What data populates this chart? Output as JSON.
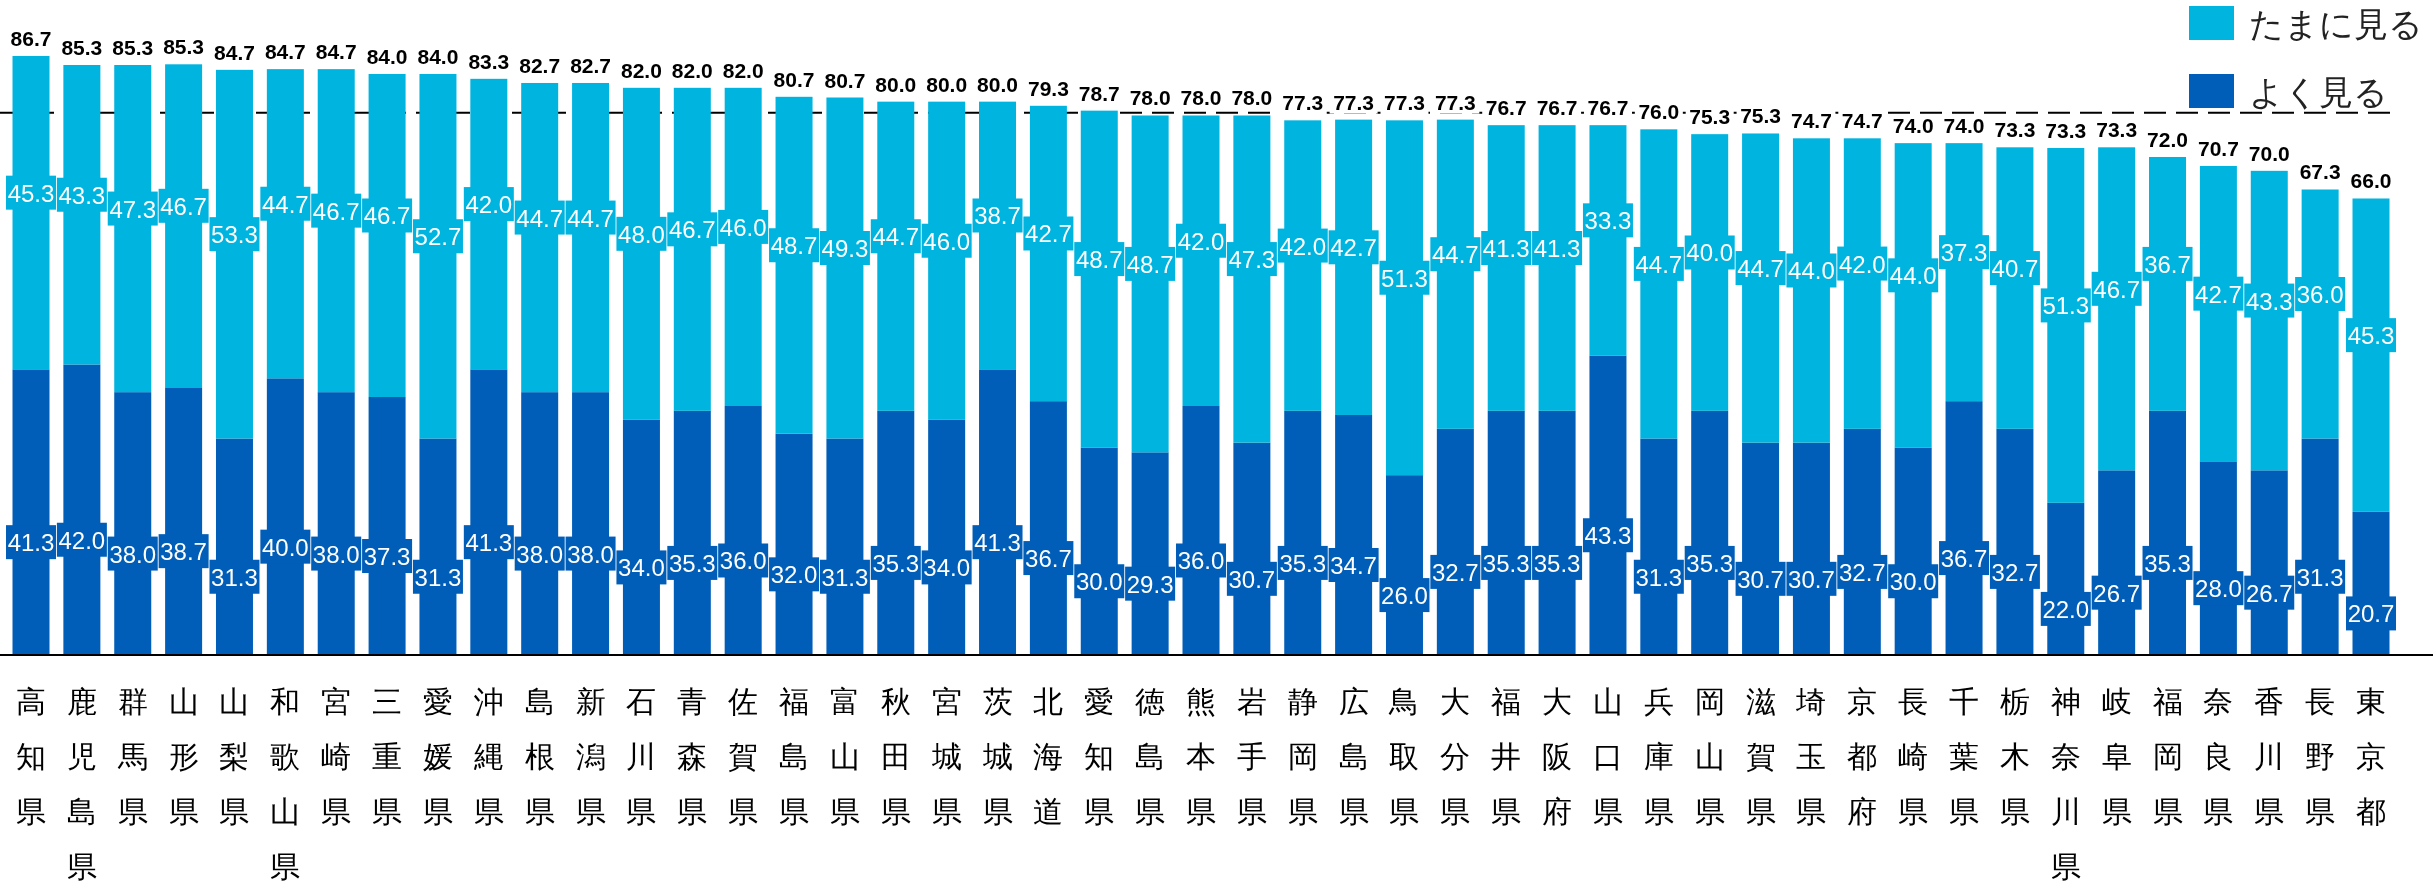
{
  "chart_data": {
    "type": "bar",
    "stacked": true,
    "legend": "top right",
    "categories": [
      "高知県",
      "鹿児島県",
      "群馬県",
      "山形県",
      "山梨県",
      "和歌山県",
      "宮崎県",
      "三重県",
      "愛媛県",
      "沖縄県",
      "島根県",
      "新潟県",
      "石川県",
      "青森県",
      "佐賀県",
      "福島県",
      "富山県",
      "秋田県",
      "宮城県",
      "茨城県",
      "北海道",
      "愛知県",
      "徳島県",
      "熊本県",
      "岩手県",
      "静岡県",
      "広島県",
      "鳥取県",
      "大分県",
      "福井県",
      "大阪府",
      "山口県",
      "兵庫県",
      "岡山県",
      "滋賀県",
      "埼玉県",
      "京都府",
      "長崎県",
      "千葉県",
      "栃木県",
      "神奈川県",
      "岐阜県",
      "福岡県",
      "奈良県",
      "香川県",
      "長野県",
      "東京都"
    ],
    "series": [
      {
        "name": "よく見る",
        "color": "#005eb8",
        "values": [
          41.3,
          42.0,
          38.0,
          38.7,
          31.3,
          40.0,
          38.0,
          37.3,
          31.3,
          41.3,
          38.0,
          38.0,
          34.0,
          35.3,
          36.0,
          32.0,
          31.3,
          35.3,
          34.0,
          41.3,
          36.7,
          30.0,
          29.3,
          36.0,
          30.7,
          35.3,
          34.7,
          26.0,
          32.7,
          35.3,
          35.3,
          43.3,
          31.3,
          35.3,
          30.7,
          30.7,
          32.7,
          30.0,
          36.7,
          32.7,
          22.0,
          26.7,
          35.3,
          28.0,
          26.7,
          31.3,
          20.7
        ],
        "value_labels": [
          "41.3",
          "42.0",
          "38.0",
          "38.7",
          "31.3",
          "40.0",
          "38.0",
          "37.3",
          "31.3",
          "41.3",
          "38.0",
          "38.0",
          "34.0",
          "35.3",
          "36.0",
          "32.0",
          "31.3",
          "35.3",
          "34.0",
          "41.3",
          "36.7",
          "30.0",
          "29.3",
          "36.0",
          "30.7",
          "35.3",
          "34.7",
          "26.0",
          "32.7",
          "35.3",
          "35.3",
          "43.3",
          "31.3",
          "35.3",
          "30.7",
          "30.7",
          "32.7",
          "30.0",
          "36.7",
          "32.7",
          "22.0",
          "26.7",
          "35.3",
          "28.0",
          "26.7",
          "31.3",
          "20.7"
        ]
      },
      {
        "name": "たまに見る",
        "color": "#00b4e0",
        "values": [
          45.3,
          43.3,
          47.3,
          46.7,
          53.3,
          44.7,
          46.7,
          46.7,
          52.7,
          42.0,
          44.7,
          44.7,
          48.0,
          46.7,
          46.0,
          48.7,
          49.3,
          44.7,
          46.0,
          38.7,
          42.7,
          48.7,
          48.7,
          42.0,
          47.3,
          42.0,
          42.7,
          51.3,
          44.7,
          41.3,
          41.3,
          33.3,
          44.7,
          40.0,
          44.7,
          44.0,
          42.0,
          44.0,
          37.3,
          40.7,
          51.3,
          46.7,
          36.7,
          42.7,
          43.3,
          36.0,
          45.3
        ],
        "value_labels": [
          "45.3",
          "43.3",
          "47.3",
          "46.7",
          "53.3",
          "44.7",
          "46.7",
          "46.7",
          "52.7",
          "42.0",
          "44.7",
          "44.7",
          "48.0",
          "46.7",
          "46.0",
          "48.7",
          "49.3",
          "44.7",
          "46.0",
          "38.7",
          "42.7",
          "48.7",
          "48.7",
          "42.0",
          "47.3",
          "42.0",
          "42.7",
          "51.3",
          "44.7",
          "41.3",
          "41.3",
          "33.3",
          "44.7",
          "40.0",
          "44.7",
          "44.0",
          "42.0",
          "44.0",
          "37.3",
          "40.7",
          "51.3",
          "46.7",
          "36.7",
          "42.7",
          "43.3",
          "36.0",
          "45.3"
        ]
      }
    ],
    "totals": [
      "86.7",
      "85.3",
      "85.3",
      "85.3",
      "84.7",
      "84.7",
      "84.7",
      "84.0",
      "84.0",
      "83.3",
      "82.7",
      "82.7",
      "82.0",
      "82.0",
      "82.0",
      "80.7",
      "80.7",
      "80.0",
      "80.0",
      "80.0",
      "79.3",
      "78.7",
      "78.0",
      "78.0",
      "78.0",
      "77.3",
      "77.3",
      "77.3",
      "77.3",
      "76.7",
      "76.7",
      "76.7",
      "76.0",
      "75.3",
      "75.3",
      "74.7",
      "74.7",
      "74.0",
      "74.0",
      "73.3",
      "73.3",
      "73.3",
      "72.0",
      "70.7",
      "70.0",
      "67.3",
      "66.0"
    ],
    "ref_lines": [
      {
        "axis": "y",
        "value": 78.4,
        "color": "#000000",
        "line_style": "dashed"
      }
    ]
  }
}
